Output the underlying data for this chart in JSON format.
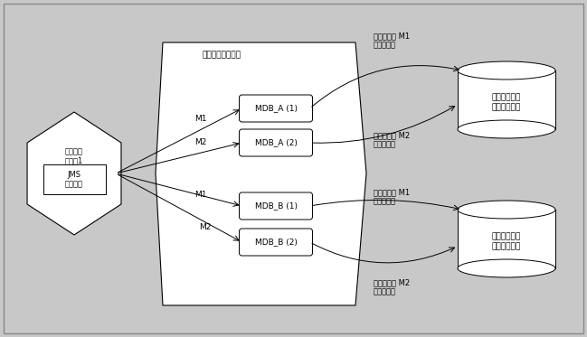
{
  "bg_color": "#c8c8c8",
  "server1_label": "管理対象\nサーベ1",
  "jms_label": "JMS\nトピック",
  "server2_label": "管理対象サーバ２",
  "mdb_labels": [
    "MDB_A (1)",
    "MDB_A (2)",
    "MDB_B (1)",
    "MDB_B (2)"
  ],
  "cylinder1_label": "国内ニュース\n配信システム",
  "cylinder2_label": "国際ニュース\n配信システム",
  "msg_labels": [
    "メッセージ M1\nからの更新",
    "メッセージ M2\nからの更新",
    "メッセージ M1\nからの更新",
    "メッセージ M2\nからの更新"
  ],
  "m_labels": [
    "M1",
    "M2",
    "M1",
    "M2"
  ],
  "line_color": "#000000",
  "box_color": "#ffffff",
  "small_font_size": 7.0
}
